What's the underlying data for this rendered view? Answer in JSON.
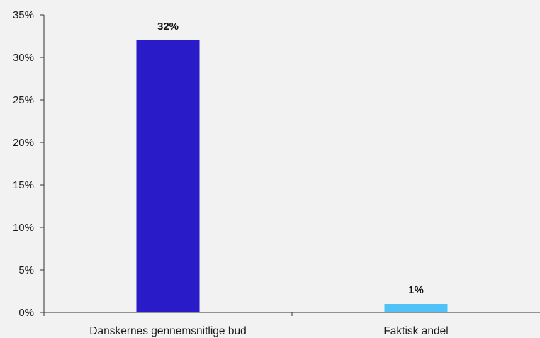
{
  "chart_data": {
    "type": "bar",
    "categories": [
      "Danskernes gennemsnitlige bud",
      "Faktisk andel"
    ],
    "values": [
      32,
      1
    ],
    "value_labels": [
      "32%",
      "1%"
    ],
    "bar_colors": [
      "#2a1bc8",
      "#4fc3f7"
    ],
    "ylim": [
      0,
      35
    ],
    "y_ticks": [
      0,
      5,
      10,
      15,
      20,
      25,
      30,
      35
    ],
    "y_tick_labels": [
      "0%",
      "5%",
      "10%",
      "15%",
      "20%",
      "25%",
      "30%",
      "35%"
    ],
    "grid": false,
    "legend": "none"
  }
}
